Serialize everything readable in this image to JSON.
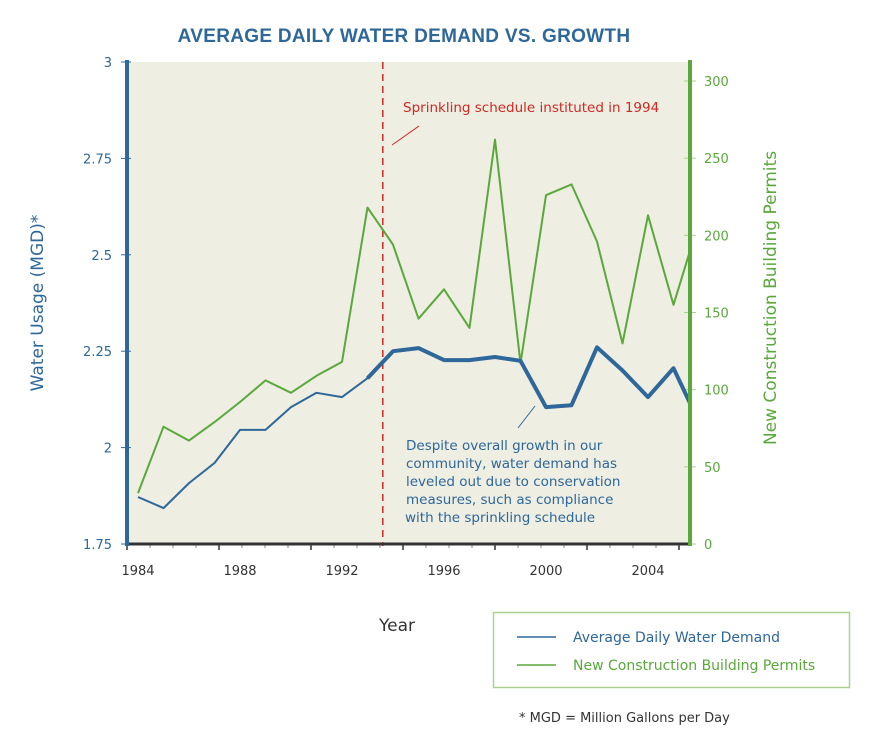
{
  "chart_data": {
    "type": "line",
    "title": "AVERAGE DAILY WATER DEMAND VS. GROWTH",
    "xlabel": "Year",
    "ylabel": "Water Usage (MGD)*",
    "y2label": "New Construction Building Permits",
    "x": [
      1984,
      1985,
      1986,
      1987,
      1988,
      1989,
      1990,
      1991,
      1992,
      1993,
      1994,
      1995,
      1996,
      1997,
      1998,
      1999,
      2000,
      2001,
      2002,
      2003,
      2004,
      2005,
      2006
    ],
    "xlim": [
      1983.6,
      2005.6
    ],
    "ylim": [
      1.75,
      3
    ],
    "y2lim": [
      0,
      300
    ],
    "x_ticks": [
      "1984",
      "1988",
      "1992",
      "1996",
      "2000",
      "2004"
    ],
    "x_tick_values": [
      1984,
      1988,
      1992,
      1996,
      2000,
      2004
    ],
    "y_ticks": [
      "1.75",
      "2",
      "2.25",
      "2.5",
      "2.75",
      "3"
    ],
    "y_tick_values": [
      1.75,
      2,
      2.25,
      2.5,
      2.75,
      3
    ],
    "y2_ticks": [
      "0",
      "50",
      "100",
      "150",
      "200",
      "250",
      "300"
    ],
    "y2_tick_values": [
      0,
      50,
      100,
      150,
      200,
      250,
      300
    ],
    "grid": false,
    "background": "#eeeee2",
    "series": [
      {
        "name": "Average Daily Water Demand",
        "axis": "left",
        "color": "#2e6799",
        "values": [
          1.872,
          1.843,
          1.908,
          1.96,
          2.046,
          2.046,
          2.105,
          2.142,
          2.131,
          2.18,
          2.25,
          2.258,
          2.227,
          2.227,
          2.235,
          2.225,
          2.105,
          2.11,
          2.26,
          2.2,
          2.131,
          2.206,
          2.066
        ]
      },
      {
        "name": "New Construction Building Permits",
        "axis": "right",
        "color": "#5aa83c",
        "values": [
          33,
          76,
          67,
          79,
          92,
          106,
          98,
          109,
          118,
          218,
          194,
          146,
          165,
          140,
          262,
          117,
          226,
          233,
          196,
          130,
          213,
          155,
          209
        ]
      }
    ],
    "annotations": [
      {
        "text": "Sprinkling schedule instituted in 1994",
        "color": "#cc2a24",
        "marker_x": 1993.6,
        "marker_style": "dashed-vertical"
      },
      {
        "lines": [
          "Despite overall growth in our",
          "community, water demand has",
          "leveled out due to conservation",
          "measures, such as compliance",
          "with the sprinkling schedule"
        ],
        "color": "#2e6799"
      }
    ],
    "legend": {
      "placement": "bottom-right",
      "entries": [
        "Average Daily Water Demand",
        "New Construction Building Permits"
      ]
    },
    "footnote": "* MGD = Million Gallons per Day"
  }
}
